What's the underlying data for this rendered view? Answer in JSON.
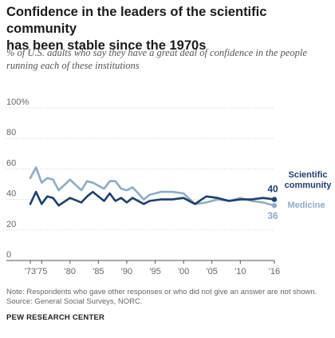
{
  "title_line1": "Confidence in the leaders of the scientific community",
  "title_line2": "has been stable since the 1970s",
  "subtitle_line1": "% of U.S. adults who say they have a great deal of confidence in the people",
  "subtitle_line2": "running each of these institutions",
  "note": "Note: Respondents who gave other responses or who did not give an answer are not shown.",
  "source": "Source: General Social Surveys, NORC.",
  "credit": "PEW RESEARCH CENTER",
  "colors": {
    "science": "#1f3f6e",
    "medicine": "#8fabc5",
    "gridline": "#d0d0d0",
    "axis": "#555555"
  },
  "chart_data": {
    "type": "line",
    "title": "Confidence in the leaders of the scientific community has been stable since the 1970s",
    "subtitle": "% of U.S. adults who say they have a great deal of confidence in the people running each of these institutions",
    "xlim": [
      1973,
      2016
    ],
    "ylim": [
      0,
      100
    ],
    "y_ticks": [
      0,
      20,
      40,
      60,
      80,
      100
    ],
    "y_tick_labels": [
      "0",
      "20",
      "40",
      "60",
      "80",
      "100%"
    ],
    "x_ticks": [
      1973,
      1975,
      1980,
      1985,
      1990,
      1995,
      2000,
      2005,
      2010,
      2016
    ],
    "x_tick_labels": [
      "'73",
      "'75",
      "'80",
      "'85",
      "'90",
      "'95",
      "'00",
      "'05",
      "'10",
      "'16"
    ],
    "grid": true,
    "series": [
      {
        "name": "Scientific community",
        "label_lines": [
          "Scientific",
          "community"
        ],
        "end_label": "40",
        "x": [
          1973,
          1974,
          1975,
          1976,
          1977,
          1978,
          1980,
          1982,
          1983,
          1984,
          1986,
          1987,
          1988,
          1989,
          1990,
          1991,
          1993,
          1994,
          1996,
          1998,
          2000,
          2002,
          2004,
          2006,
          2008,
          2010,
          2012,
          2014,
          2016
        ],
        "y": [
          37,
          45,
          37,
          42,
          41,
          36,
          41,
          38,
          42,
          45,
          39,
          44,
          39,
          41,
          38,
          41,
          37,
          39,
          40,
          40,
          41,
          37,
          42,
          41,
          39,
          40,
          40,
          41,
          40
        ]
      },
      {
        "name": "Medicine",
        "label_lines": [
          "Medicine"
        ],
        "end_label": "36",
        "x": [
          1973,
          1974,
          1975,
          1976,
          1977,
          1978,
          1980,
          1982,
          1983,
          1984,
          1986,
          1987,
          1988,
          1989,
          1990,
          1991,
          1993,
          1994,
          1996,
          1998,
          2000,
          2002,
          2004,
          2006,
          2008,
          2010,
          2012,
          2014,
          2016
        ],
        "y": [
          54,
          61,
          51,
          54,
          53,
          46,
          53,
          46,
          52,
          51,
          47,
          52,
          52,
          47,
          46,
          48,
          40,
          43,
          45,
          45,
          44,
          37,
          38,
          40,
          39,
          41,
          39,
          38,
          36
        ]
      }
    ]
  }
}
